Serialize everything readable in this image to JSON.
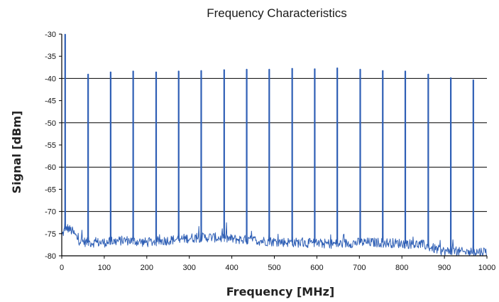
{
  "chart_data": {
    "type": "line",
    "title": "Frequency Characteristics",
    "xlabel": "Frequency [MHz]",
    "ylabel": "Signal [dBm]",
    "xlim": [
      0,
      1000
    ],
    "ylim": [
      -80,
      -30
    ],
    "x_ticks": [
      0,
      100,
      200,
      300,
      400,
      500,
      600,
      700,
      800,
      900,
      1000
    ],
    "y_ticks": [
      -30,
      -35,
      -40,
      -45,
      -50,
      -55,
      -60,
      -65,
      -70,
      -75,
      -80
    ],
    "grid": "horizontal lines at -40, -50, -60, -70",
    "legend": "none",
    "series": [
      {
        "color": "#2f5fb5",
        "noise_floor_dbm": [
          [
            0,
            -75.5
          ],
          [
            10,
            -73.5
          ],
          [
            25,
            -74.5
          ],
          [
            40,
            -76.5
          ],
          [
            60,
            -77
          ],
          [
            100,
            -77
          ],
          [
            150,
            -76.5
          ],
          [
            200,
            -77
          ],
          [
            250,
            -76.5
          ],
          [
            300,
            -76
          ],
          [
            350,
            -75.8
          ],
          [
            400,
            -76.2
          ],
          [
            450,
            -76.5
          ],
          [
            500,
            -76.8
          ],
          [
            550,
            -77
          ],
          [
            600,
            -77.2
          ],
          [
            650,
            -77.3
          ],
          [
            700,
            -77
          ],
          [
            750,
            -77
          ],
          [
            800,
            -77.2
          ],
          [
            850,
            -77.5
          ],
          [
            880,
            -78.5
          ],
          [
            900,
            -79
          ],
          [
            950,
            -79.2
          ],
          [
            1000,
            -79
          ]
        ],
        "peaks": [
          {
            "x": 8,
            "y": -30
          },
          {
            "x": 62,
            "y": -39
          },
          {
            "x": 115,
            "y": -38.5
          },
          {
            "x": 168,
            "y": -38.3
          },
          {
            "x": 222,
            "y": -38.5
          },
          {
            "x": 275,
            "y": -38.3
          },
          {
            "x": 328,
            "y": -38.2
          },
          {
            "x": 382,
            "y": -38
          },
          {
            "x": 435,
            "y": -37.9
          },
          {
            "x": 488,
            "y": -37.9
          },
          {
            "x": 542,
            "y": -37.7
          },
          {
            "x": 595,
            "y": -37.8
          },
          {
            "x": 648,
            "y": -37.6
          },
          {
            "x": 702,
            "y": -37.9
          },
          {
            "x": 755,
            "y": -38.2
          },
          {
            "x": 808,
            "y": -38.3
          },
          {
            "x": 862,
            "y": -39
          },
          {
            "x": 915,
            "y": -39.8
          },
          {
            "x": 968,
            "y": -40.3
          }
        ]
      }
    ]
  }
}
